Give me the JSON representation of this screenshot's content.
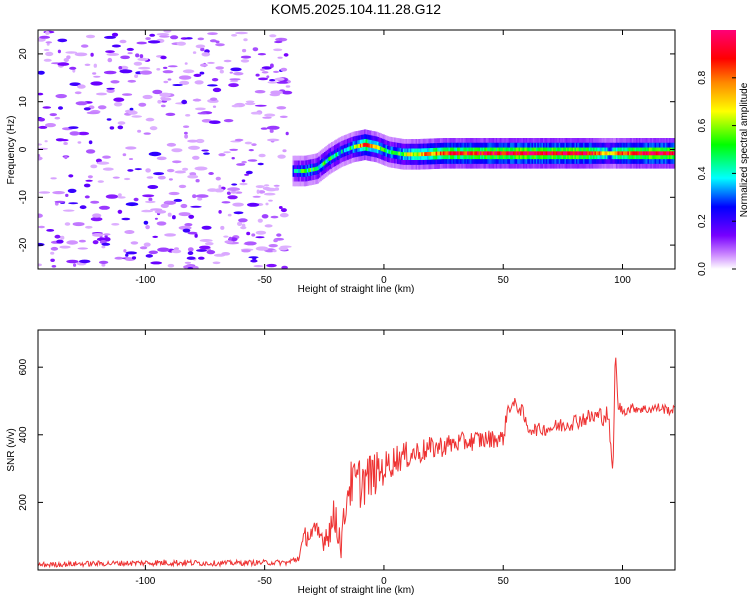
{
  "title": "KOM5.2025.104.11.28.G12",
  "chart_data": [
    {
      "type": "heatmap",
      "xlabel": "Height of straight line (km)",
      "ylabel": "Frequency (Hz)",
      "xlim": [
        -145,
        122
      ],
      "ylim": [
        -25,
        25
      ],
      "xticks": [
        -100,
        -50,
        0,
        50,
        100
      ],
      "yticks": [
        -20,
        -10,
        0,
        10,
        20
      ],
      "colorbar": {
        "label": "Normalized spectral amplitude",
        "range": [
          0,
          1
        ],
        "ticks": [
          0,
          0.2,
          0.4,
          0.6,
          0.8
        ],
        "colormap": [
          "#ffffff",
          "#cc88ff",
          "#7700ff",
          "#0000ff",
          "#00ffff",
          "#00ff00",
          "#ffff00",
          "#ff8800",
          "#ff0000",
          "#ff0077"
        ]
      },
      "noise_region_x": [
        -145,
        -40
      ],
      "ridge": {
        "x": [
          -38,
          -33,
          -28,
          -23,
          -18,
          -13,
          -8,
          -3,
          2,
          8,
          15,
          25,
          40,
          55,
          70,
          85,
          95,
          100,
          110,
          122
        ],
        "freq": [
          -4.5,
          -4.5,
          -4,
          -2,
          -0.5,
          0.5,
          1,
          0.5,
          -0.5,
          -1,
          -1,
          -0.8,
          -0.8,
          -0.8,
          -0.8,
          -0.8,
          -0.8,
          -0.8,
          -0.8,
          -0.8
        ],
        "amplitude": [
          0.35,
          0.5,
          0.45,
          0.45,
          0.4,
          0.5,
          0.85,
          0.6,
          0.5,
          0.55,
          0.7,
          0.85,
          0.9,
          0.95,
          0.95,
          0.95,
          0.6,
          0.85,
          0.95,
          0.95
        ]
      }
    },
    {
      "type": "line",
      "xlabel": "Height of straight line (km)",
      "ylabel": "SNR (v/v)",
      "xlim": [
        -145,
        122
      ],
      "ylim": [
        0,
        710
      ],
      "xticks": [
        -100,
        -50,
        0,
        50,
        100
      ],
      "yticks": [
        200,
        400,
        600
      ],
      "series": [
        {
          "color": "#ee3333",
          "x": [
            -145,
            -130,
            -110,
            -90,
            -70,
            -50,
            -40,
            -36,
            -33,
            -30,
            -25,
            -20,
            -18,
            -15,
            -10,
            -5,
            0,
            5,
            10,
            20,
            30,
            40,
            50,
            52,
            55,
            58,
            60,
            65,
            70,
            75,
            80,
            85,
            90,
            94,
            96,
            97,
            98,
            100,
            105,
            110,
            115,
            122
          ],
          "y": [
            15,
            18,
            20,
            22,
            20,
            22,
            22,
            35,
            100,
            110,
            95,
            160,
            70,
            250,
            260,
            280,
            300,
            330,
            340,
            360,
            375,
            385,
            390,
            480,
            490,
            470,
            420,
            415,
            420,
            430,
            440,
            450,
            455,
            460,
            280,
            660,
            490,
            470,
            480,
            475,
            480,
            470
          ],
          "noise": [
            8,
            8,
            8,
            10,
            8,
            8,
            8,
            15,
            30,
            35,
            40,
            70,
            40,
            70,
            80,
            70,
            50,
            45,
            40,
            35,
            30,
            30,
            25,
            20,
            20,
            20,
            20,
            20,
            20,
            25,
            25,
            25,
            30,
            30,
            0,
            0,
            20,
            15,
            15,
            15,
            15,
            15
          ]
        }
      ]
    }
  ]
}
